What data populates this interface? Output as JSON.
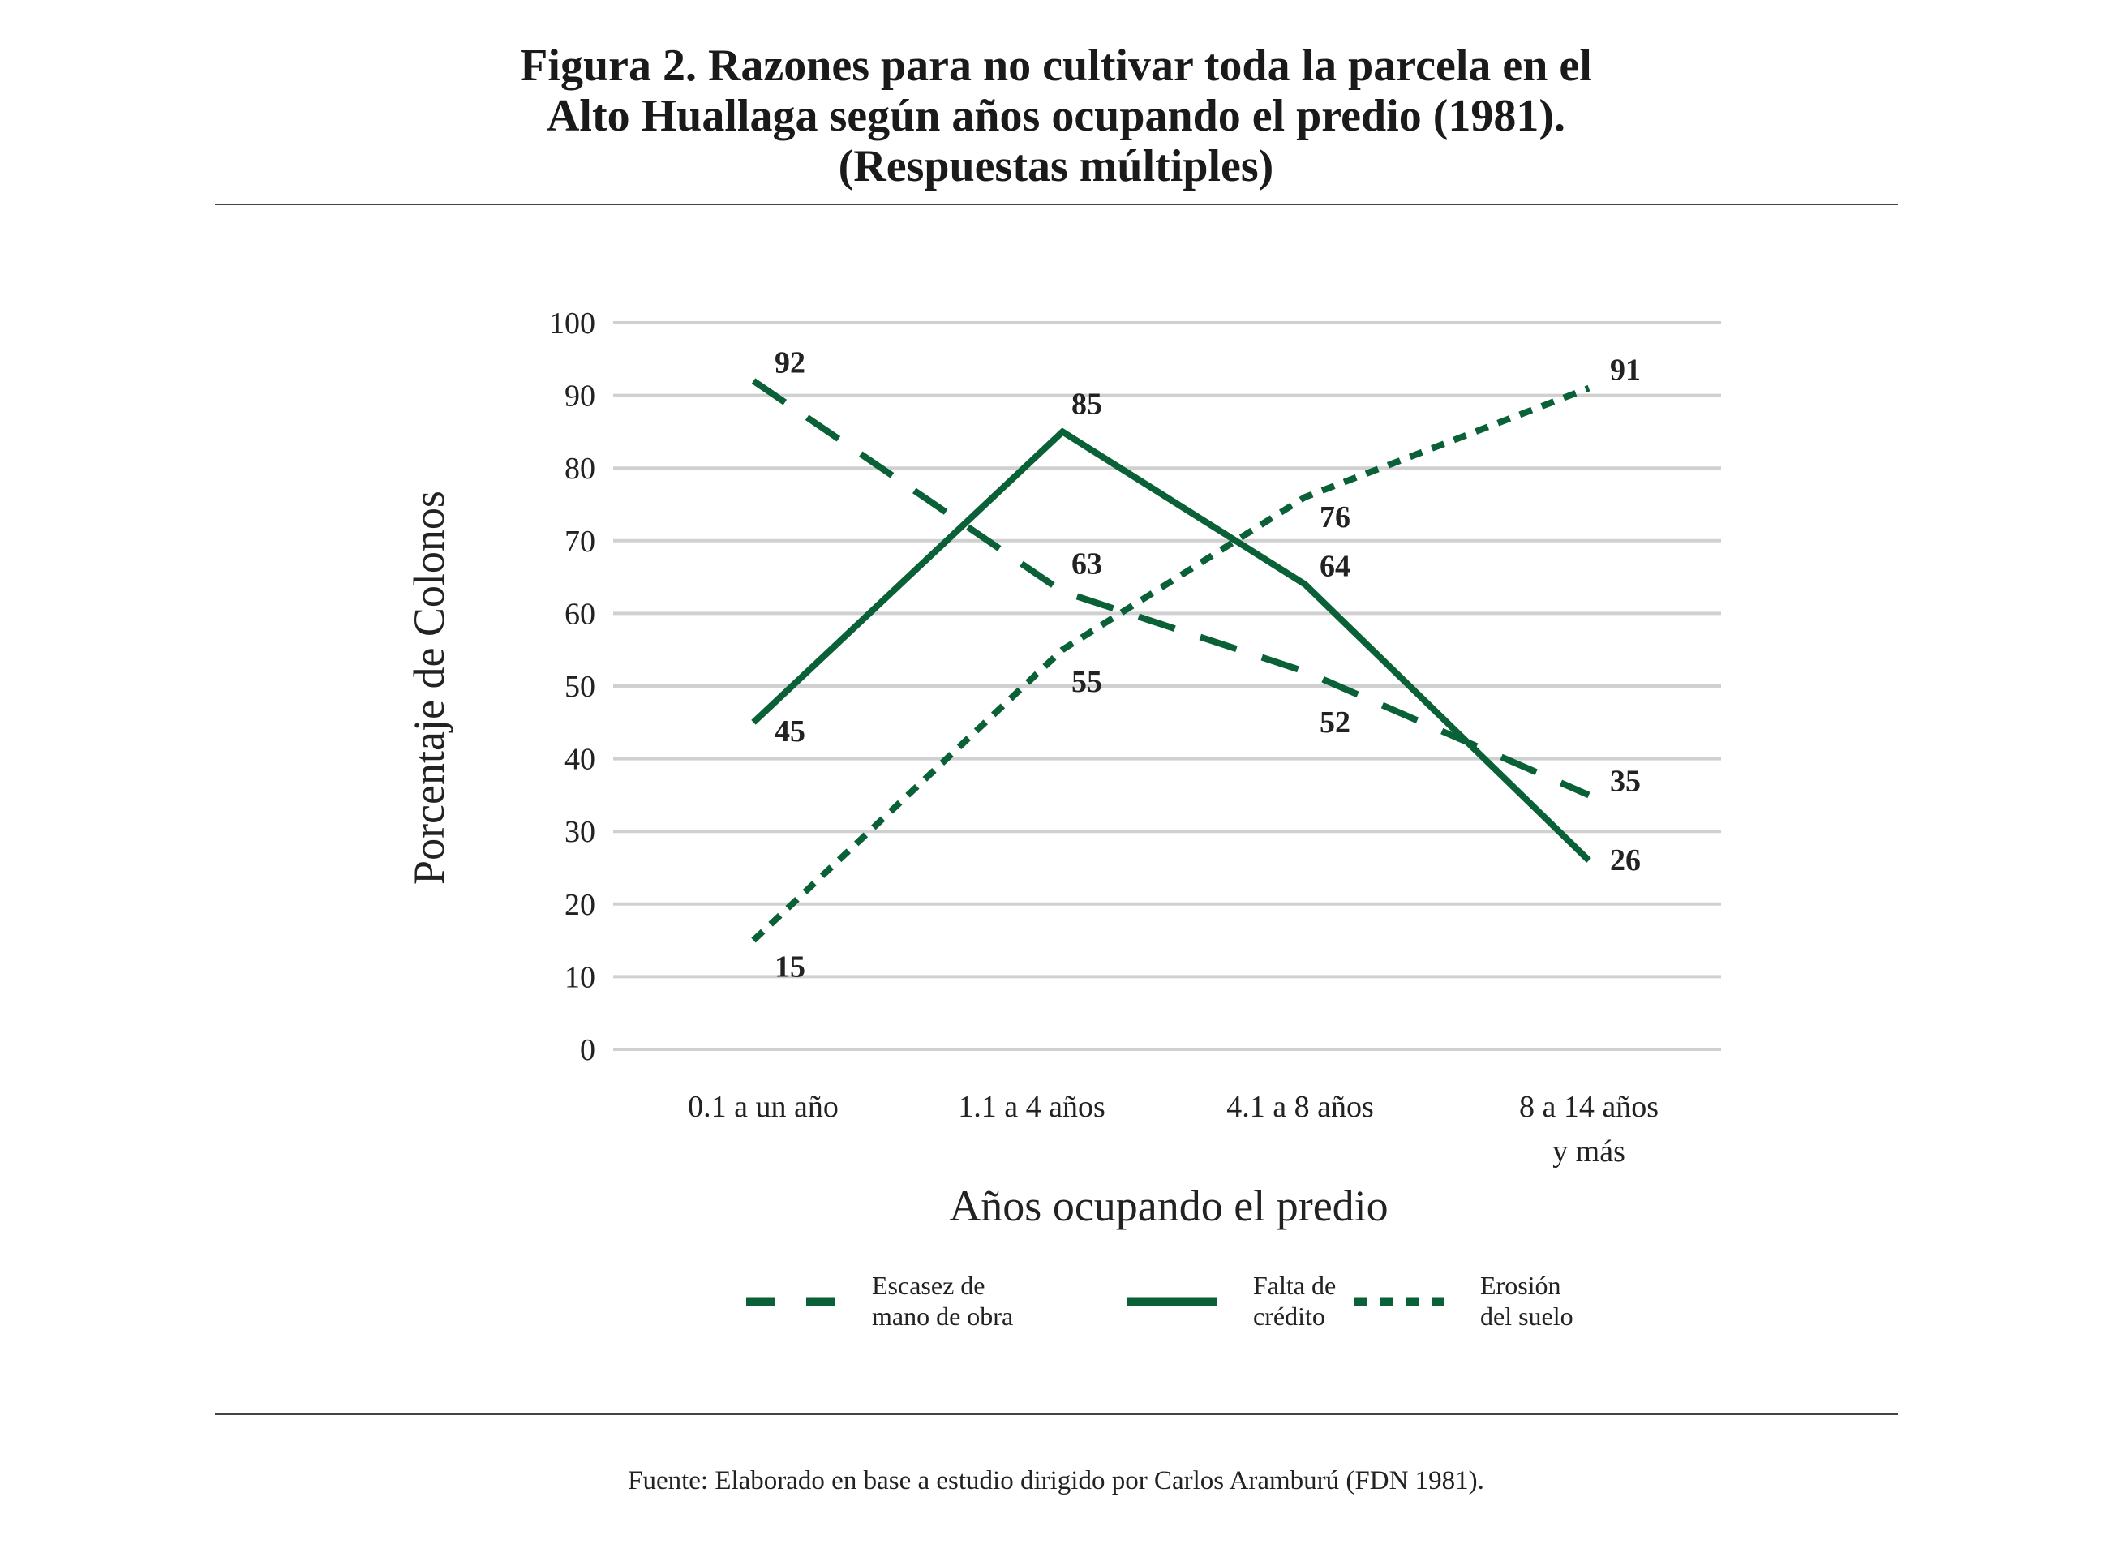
{
  "chart_data": {
    "type": "line",
    "title": [
      "Figura 2. Razones para no cultivar toda la parcela en el",
      "Alto Huallaga según años ocupando el predio (1981).",
      "(Respuestas múltiples)"
    ],
    "xlabel": "Años ocupando el predio",
    "ylabel": "Porcentaje de Colonos",
    "categories": [
      [
        "0.1 a un año"
      ],
      [
        "1.1 a 4 años"
      ],
      [
        "4.1 a 8 años"
      ],
      [
        "8 a 14 años",
        "y más"
      ]
    ],
    "ylim": [
      0,
      100
    ],
    "yticks": [
      0,
      10,
      20,
      30,
      40,
      50,
      60,
      70,
      80,
      90,
      100
    ],
    "grid": true,
    "legend_position": "bottom",
    "series": [
      {
        "name": [
          "Escasez de",
          "mano de obra"
        ],
        "style": "dashed",
        "values": [
          92,
          63,
          52,
          35
        ]
      },
      {
        "name": [
          "Falta de",
          "crédito"
        ],
        "style": "solid",
        "values": [
          45,
          85,
          64,
          26
        ]
      },
      {
        "name": [
          "Erosión",
          "del suelo"
        ],
        "style": "dotted",
        "values": [
          15,
          55,
          76,
          91
        ]
      }
    ],
    "color": "#0a6037"
  },
  "source": "Fuente: Elaborado en base a estudio dirigido por Carlos Aramburú (FDN 1981)."
}
